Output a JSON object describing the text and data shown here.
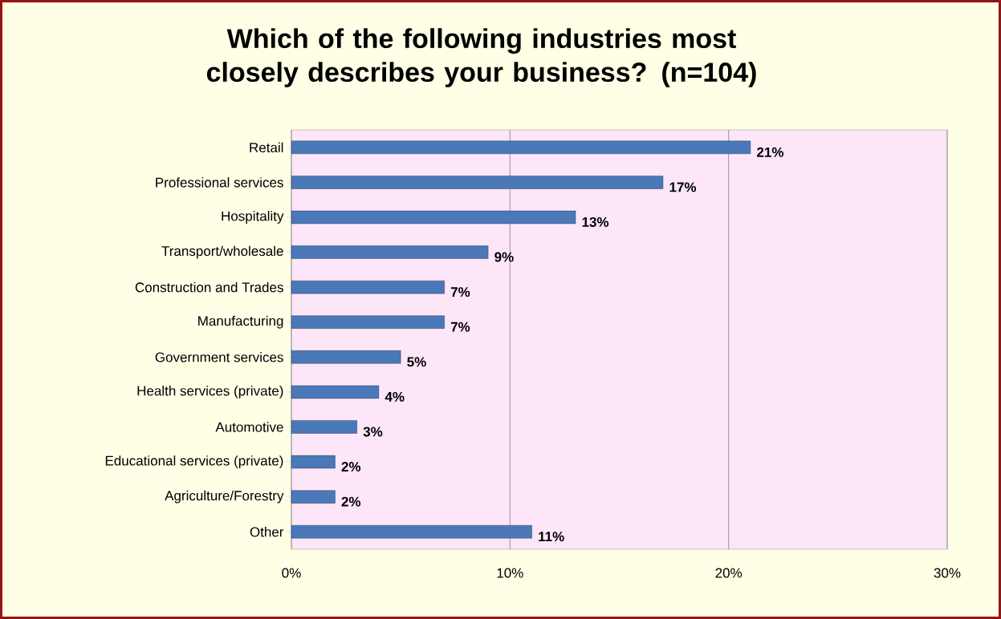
{
  "chart_data": {
    "type": "bar",
    "orientation": "horizontal",
    "title": "Which of the following industries most closely describes your business? (n=104)",
    "categories": [
      "Retail",
      "Professional services",
      "Hospitality",
      "Transport/wholesale",
      "Construction and Trades",
      "Manufacturing",
      "Government services",
      "Health services (private)",
      "Automotive",
      "Educational services (private)",
      "Agriculture/Forestry",
      "Other"
    ],
    "values": [
      21,
      17,
      13,
      9,
      7,
      7,
      5,
      4,
      3,
      2,
      2,
      11
    ],
    "value_labels": [
      "21%",
      "17%",
      "13%",
      "9%",
      "7%",
      "7%",
      "5%",
      "4%",
      "3%",
      "2%",
      "2%",
      "11%"
    ],
    "color": "#4a78b8",
    "xlim": [
      0,
      30
    ],
    "xticks": [
      {
        "value": 0,
        "label": "0%"
      },
      {
        "value": 10,
        "label": "10%"
      },
      {
        "value": 20,
        "label": "20%"
      },
      {
        "value": 30,
        "label": "30%"
      }
    ],
    "grid": "x"
  }
}
